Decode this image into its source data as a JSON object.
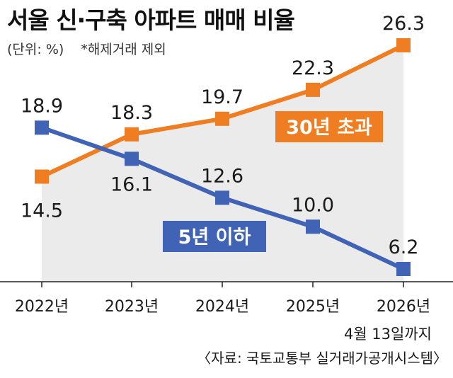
{
  "header": {
    "title": "서울 신·구축 아파트 매매 비율",
    "unit": "(단위: %)",
    "note": "*해제거래 제외"
  },
  "footer": {
    "date_note": "4월 13일까지",
    "source": "〈자료: 국토교통부 실거래가공개시스템〉"
  },
  "chart_data": {
    "type": "line",
    "title": "서울 신·구축 아파트 매매 비율",
    "xlabel": "",
    "ylabel": "%",
    "categories": [
      "2022년",
      "2023년",
      "2024년",
      "2025년",
      "2026년"
    ],
    "ylim": [
      5,
      28
    ],
    "grid": false,
    "series": [
      {
        "name": "30년 초과",
        "color": "#ef7d22",
        "values": [
          14.5,
          18.3,
          19.7,
          22.3,
          26.3
        ],
        "labels": [
          "14.5",
          "18.3",
          "19.7",
          "22.3",
          "26.3"
        ]
      },
      {
        "name": "5년 이하",
        "color": "#4163b5",
        "values": [
          18.9,
          16.1,
          12.6,
          10.0,
          6.2
        ],
        "labels": [
          "18.9",
          "16.1",
          "12.6",
          "10.0",
          "6.2"
        ]
      }
    ]
  },
  "colors": {
    "grey_band": "#ebebeb",
    "axis": "#222222",
    "text": "#1a1a1a"
  }
}
